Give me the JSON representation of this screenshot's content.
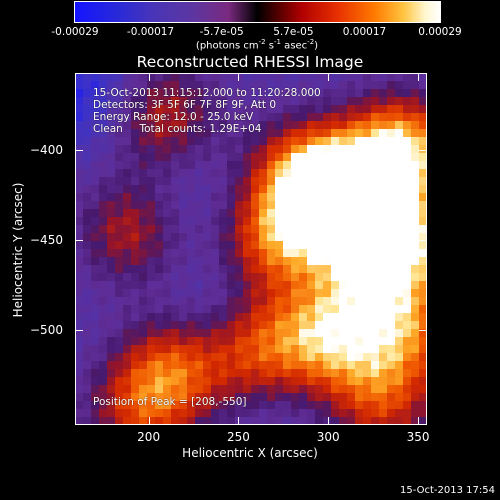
{
  "colorbar": {
    "ticks": [
      "-0.00029",
      "-0.00017",
      "-5.7e-05",
      "5.7e-05",
      "0.00017",
      "0.00029"
    ],
    "values": [
      -0.00029,
      -0.00017,
      -5.7e-05,
      5.7e-05,
      0.00017,
      0.00029
    ],
    "unit_text": "(photons cm",
    "unit_sup1": "-2",
    "unit_mid": " s",
    "unit_sup2": "-1",
    "unit_mid2": " asec",
    "unit_sup3": "-2",
    "unit_end": ")"
  },
  "annotations": {
    "time": "15-Oct-2013 11:15:12.000 to 11:20:28.000",
    "detectors": "Detectors: 3F 5F 6F 7F 8F 9F, Att 0",
    "energy": "Energy Range: 12.0 - 25.0 keV",
    "clean": "Clean     Total counts: 1.29E+04",
    "peak": "Position of Peak = [208,-550]"
  },
  "footer": {
    "timestamp": "15-Oct-2013 17:54"
  },
  "chart_data": {
    "type": "heatmap",
    "title": "Reconstructed RHESSI Image",
    "xlabel": "Heliocentric X (arcsec)",
    "ylabel": "Heliocentric Y (arcsec)",
    "xlim": [
      159,
      355
    ],
    "ylim": [
      -553,
      -357
    ],
    "xticks": [
      200,
      250,
      300,
      350
    ],
    "yticks": [
      -400,
      -450,
      -500
    ],
    "peak_position": [
      208,
      -550
    ],
    "colorbar_range": [
      -0.00029,
      0.00029
    ],
    "regions": [
      {
        "x": 310,
        "y": -430,
        "level": 0.0002
      },
      {
        "x": 340,
        "y": -400,
        "level": 0.00026
      },
      {
        "x": 345,
        "y": -450,
        "level": 0.00018
      },
      {
        "x": 290,
        "y": -415,
        "level": 0.00022
      },
      {
        "x": 270,
        "y": -450,
        "level": 0.00014
      },
      {
        "x": 205,
        "y": -380,
        "level": 0.0001
      },
      {
        "x": 190,
        "y": -445,
        "level": 8e-05
      },
      {
        "x": 215,
        "y": -520,
        "level": 0.00012
      },
      {
        "x": 260,
        "y": -510,
        "level": 0.00012
      },
      {
        "x": 300,
        "y": -505,
        "level": 0.00017
      },
      {
        "x": 345,
        "y": -500,
        "level": 0.00012
      },
      {
        "x": 330,
        "y": -540,
        "level": 0.0001
      },
      {
        "x": 235,
        "y": -495,
        "level": -0.0002
      },
      {
        "x": 220,
        "y": -430,
        "level": -0.00017
      },
      {
        "x": 170,
        "y": -370,
        "level": -0.00026
      },
      {
        "x": 280,
        "y": -535,
        "level": -0.00014
      },
      {
        "x": 195,
        "y": -545,
        "level": 9e-05
      },
      {
        "x": 320,
        "y": -470,
        "level": 6e-05
      },
      {
        "x": 250,
        "y": -390,
        "level": -0.0001
      }
    ]
  }
}
